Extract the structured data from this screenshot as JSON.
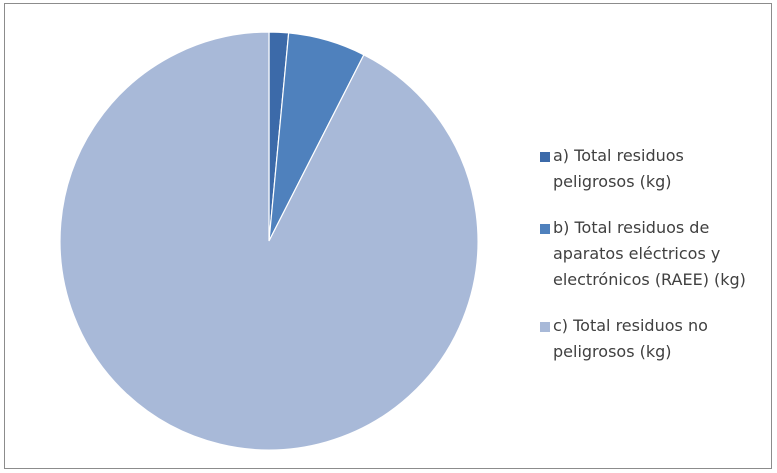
{
  "chart_data": {
    "type": "pie",
    "title": "",
    "categories": [
      "a) Total residuos peligrosos (kg)",
      "b) Total residuos de aparatos eléctricos y electrónicos (RAEE) (kg)",
      "c) Total residuos no peligrosos (kg)"
    ],
    "values": [
      1.5,
      6.0,
      92.5
    ],
    "colors": [
      "#3c6aa9",
      "#4f81bd",
      "#a8b9d8"
    ],
    "start_angle_deg": 0,
    "direction": "clockwise",
    "legend_position": "right"
  }
}
